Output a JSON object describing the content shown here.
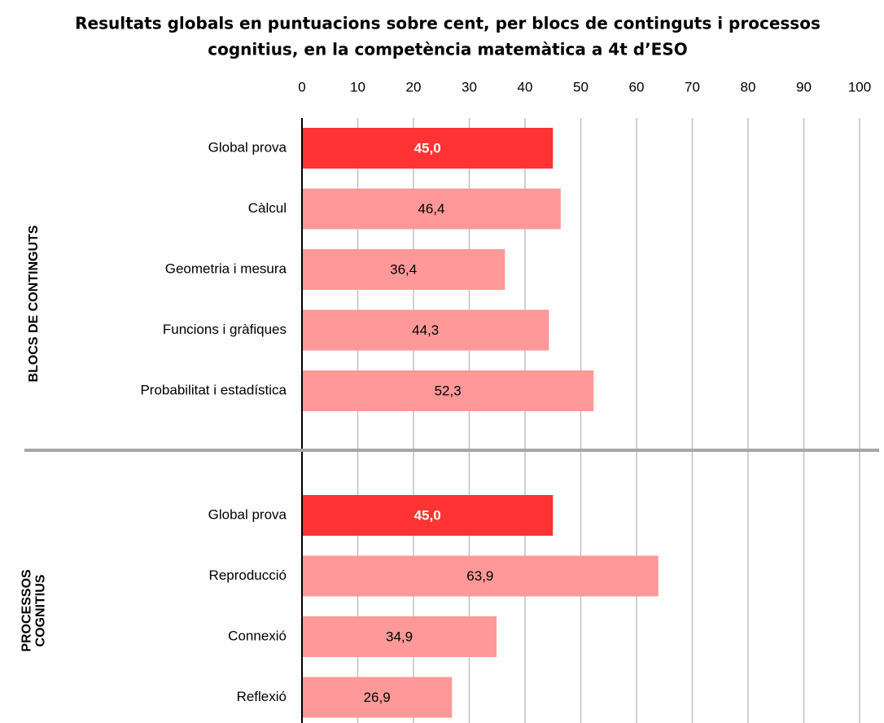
{
  "chart_data": {
    "type": "bar",
    "orientation": "horizontal",
    "title": [
      "Resultats globals en puntuacions sobre cent, per blocs de continguts i processos",
      "cognitius, en la competència matemàtica a 4t d’ESO"
    ],
    "xlim": [
      0,
      100
    ],
    "xticks": [
      0,
      10,
      20,
      30,
      40,
      50,
      60,
      70,
      80,
      90,
      100
    ],
    "grid": true,
    "groups": [
      {
        "label_lines": [
          "BLOCS DE CONTINGUTS"
        ],
        "categories": [
          "Global prova",
          "Càlcul",
          "Geometria i mesura",
          "Funcions i gràfiques",
          "Probabilitat i estadística"
        ],
        "values": [
          45.0,
          46.4,
          36.4,
          44.3,
          52.3
        ],
        "value_labels": [
          "45,0",
          "46,4",
          "36,4",
          "44,3",
          "52,3"
        ],
        "colors": [
          "#ff3333",
          "#ff9999",
          "#ff9999",
          "#ff9999",
          "#ff9999"
        ]
      },
      {
        "label_lines": [
          "PROCESSOS",
          "COGNITIUS"
        ],
        "categories": [
          "Global prova",
          "Reproducció",
          "Connexió",
          "Reflexió"
        ],
        "values": [
          45.0,
          63.9,
          34.9,
          26.9
        ],
        "value_labels": [
          "45,0",
          "63,9",
          "34,9",
          "26,9"
        ],
        "colors": [
          "#ff3333",
          "#ff9999",
          "#ff9999",
          "#ff9999"
        ]
      }
    ]
  }
}
